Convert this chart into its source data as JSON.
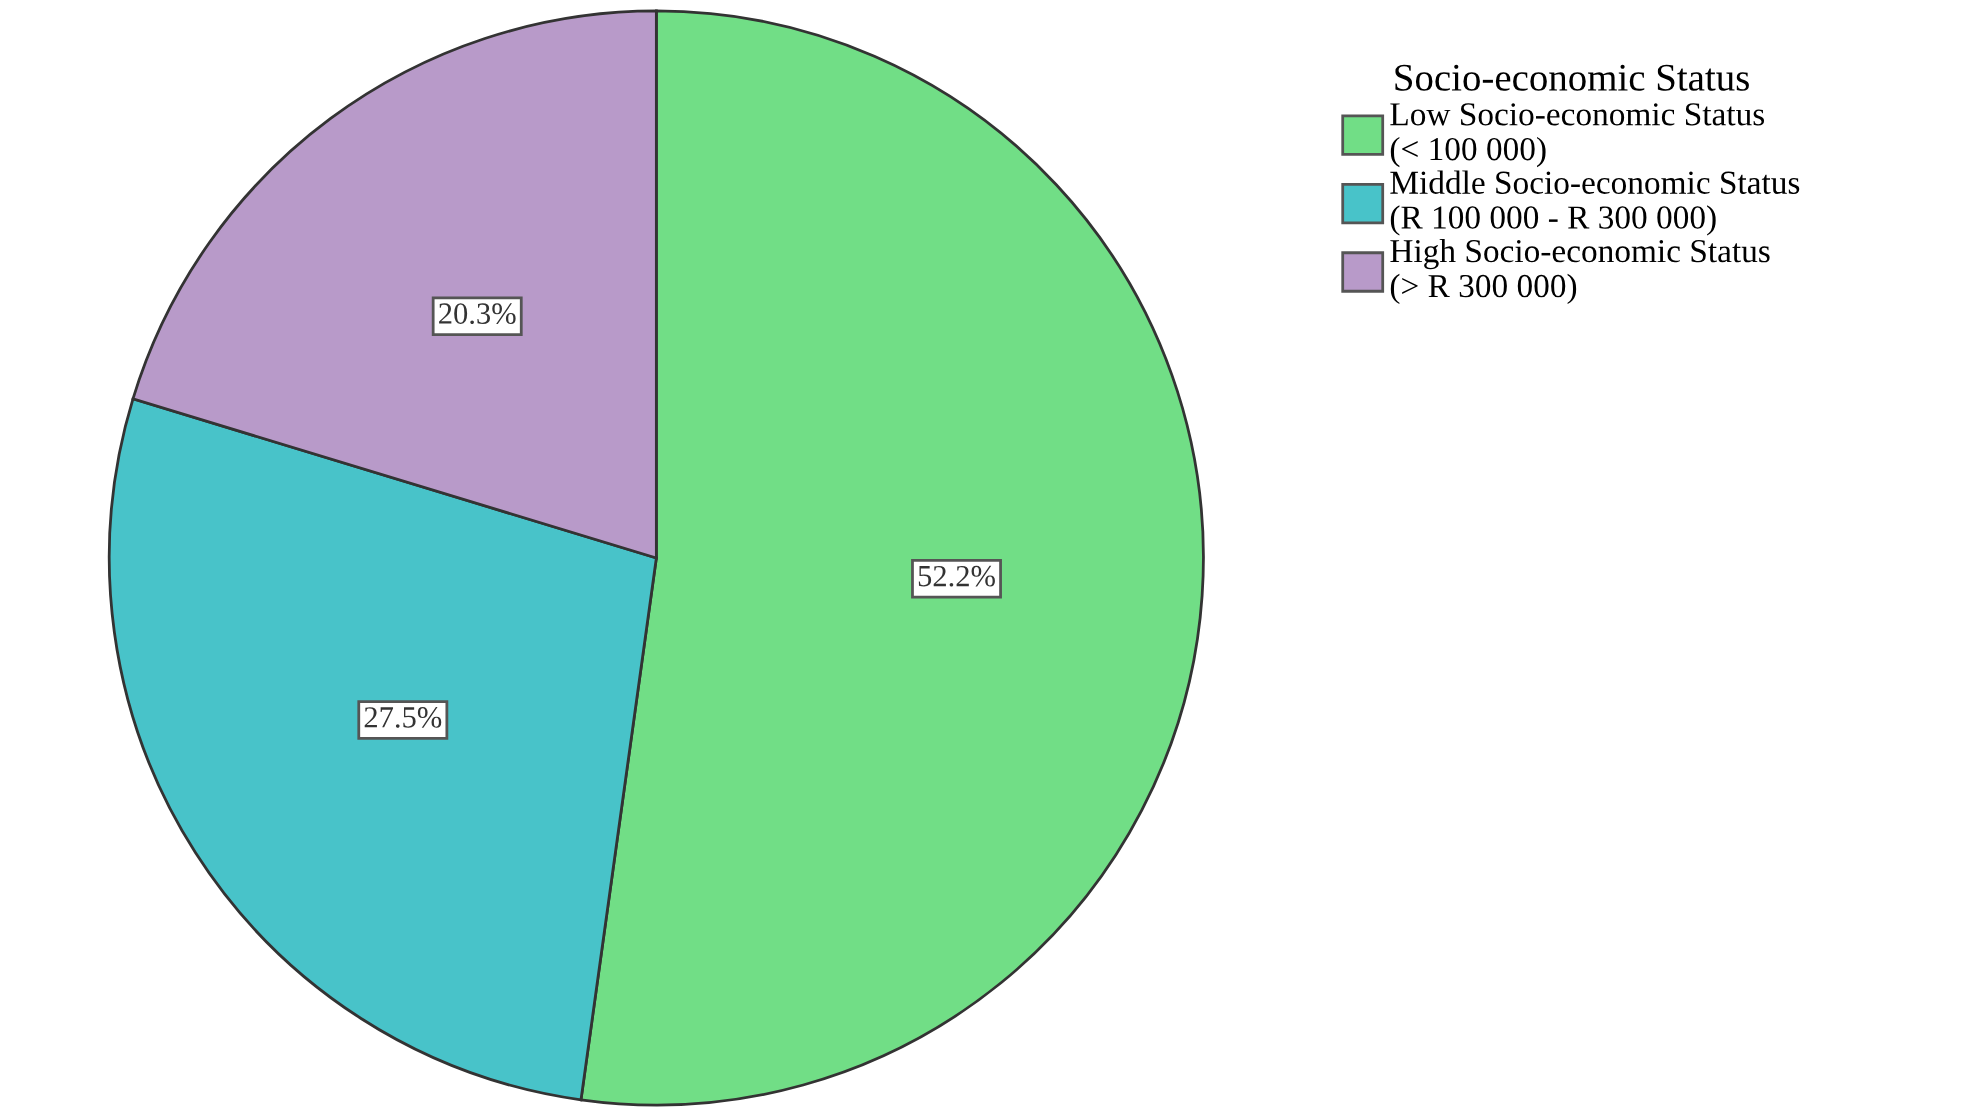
{
  "chart_data": {
    "type": "pie",
    "legend_title": "Socio-economic Status",
    "categories": [
      "Low Socio-economic Status\n(< 100 000)",
      "Middle Socio-economic Status\n(R 100 000 - R 300 000)",
      "High Socio-economic Status\n(> R 300 000)"
    ],
    "values": [
      52.2,
      27.5,
      20.3
    ],
    "colors": [
      "#71de86",
      "#48c3c9",
      "#b89ac9"
    ],
    "value_labels": [
      "52.2%",
      "27.5%",
      "20.3%"
    ],
    "legend": "top right"
  }
}
